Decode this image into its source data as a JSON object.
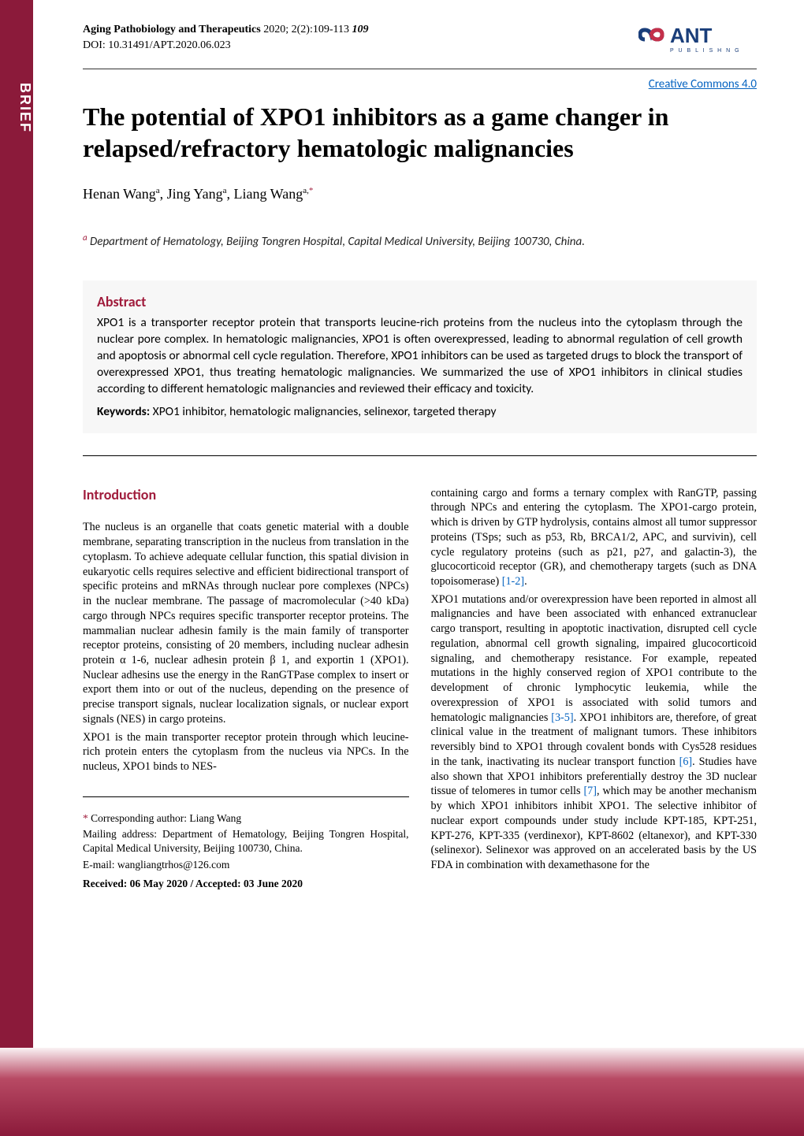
{
  "sidebar": {
    "label": "BRIEF"
  },
  "header": {
    "journal_name": "Aging Pathobiology and Therapeutics",
    "citation_rest": " 2020; 2(2):109-113 ",
    "page_em": "109",
    "doi": "DOI: 10.31491/APT.2020.06.023",
    "logo_text_main": "ANT",
    "logo_text_sub": "P U B L I S H N G"
  },
  "cc_link": "Creative Commons 4.0",
  "title": "The potential of XPO1 inhibitors as a game changer in relapsed/refractory hematologic malignancies",
  "authors_html": "Henan Wang<sup>a</sup>, Jing Yang<sup>a</sup>, Liang Wang<sup>a,</sup><sup class=\"corr-star\">*</sup>",
  "affiliation": {
    "sup": "a",
    "text": " Department of Hematology, Beijing Tongren Hospital, Capital Medical University, Beijing 100730, China."
  },
  "abstract": {
    "heading": "Abstract",
    "text": "XPO1 is a transporter receptor protein that transports leucine-rich proteins from the nucleus into the cytoplasm through the nuclear pore complex. In hematologic malignancies, XPO1 is often overexpressed, leading to abnormal regulation of cell growth and apoptosis or abnormal cell cycle regulation. Therefore, XPO1 inhibitors can be used as targeted drugs to block the transport of overexpressed XPO1, thus treating hematologic malignancies. We summarized the use of XPO1 inhibitors in clinical studies according to different hematologic malignancies and reviewed their efficacy and toxicity.",
    "keywords_label": "Keywords:",
    "keywords_text": " XPO1 inhibitor, hematologic malignancies, selinexor, targeted therapy"
  },
  "intro_heading": "Introduction",
  "col_left": {
    "p1": "The nucleus is an organelle that coats genetic material with a double membrane, separating transcription in the nucleus from translation in the cytoplasm. To achieve adequate cellular function, this spatial division in eukaryotic cells requires selective and efficient bidirectional transport of specific proteins and mRNAs through nuclear pore complexes (NPCs) in the nuclear membrane. The passage of macromolecular (>40 kDa) cargo through NPCs requires specific transporter receptor proteins. The mammalian nuclear adhesin family is the main family of transporter receptor proteins, consisting of 20 members, including nuclear adhesin protein α 1-6, nuclear adhesin protein β 1, and exportin 1 (XPO1). Nuclear adhesins use the energy in the RanGTPase complex to insert or export them into or out of the nucleus, depending on the presence of precise transport signals, nuclear localization signals, or nuclear export signals (NES) in cargo proteins.",
    "p2": "XPO1 is the main transporter receptor protein through which leucine-rich protein enters the cytoplasm from the nucleus via NPCs. In the nucleus, XPO1 binds to NES-"
  },
  "col_right": {
    "p1_a": "containing cargo and forms a ternary complex with RanGTP, passing through NPCs and entering the cytoplasm. The XPO1-cargo protein, which is driven by GTP hydrolysis, contains almost all tumor suppressor proteins (TSps; such as p53, Rb, BRCA1/2, APC, and survivin), cell cycle regulatory proteins (such as p21, p27, and galactin-3), the glucocorticoid receptor (GR), and chemotherapy targets (such as DNA topoisomerase) ",
    "ref1": "[1-2]",
    "p1_b": ".",
    "p2_a": "XPO1 mutations and/or overexpression have been reported in almost all malignancies and have been associated with enhanced extranuclear cargo transport, resulting in apoptotic inactivation, disrupted cell cycle regulation, abnormal cell growth signaling, impaired glucocorticoid signaling, and chemotherapy resistance. For example, repeated mutations in the highly conserved region of XPO1 contribute to the development of chronic lymphocytic leukemia, while the overexpression of XPO1 is associated with solid tumors and hematologic malignancies ",
    "ref2": "[3-5]",
    "p2_b": ". XPO1 inhibitors are, therefore, of great clinical value in the treatment of malignant tumors. These inhibitors reversibly bind to XPO1 through covalent bonds with Cys528 residues in the tank, inactivating its nuclear transport function ",
    "ref3": "[6]",
    "p2_c": ". Studies have also shown that XPO1 inhibitors preferentially destroy the 3D nuclear tissue of telomeres in tumor cells ",
    "ref4": "[7]",
    "p2_d": ", which may be another mechanism by which XPO1 inhibitors inhibit XPO1. The selective inhibitor of nuclear export compounds under study include KPT-185, KPT-251, KPT-276, KPT-335 (verdinexor), KPT-8602 (eltanexor), and KPT-330 (selinexor). Selinexor was approved on an accelerated basis by the US FDA in combination with dexamethasone for the"
  },
  "footnotes": {
    "corr_label": "* ",
    "corr_text": "Corresponding author: Liang Wang",
    "mailing": "Mailing address: Department of Hematology, Beijing Tongren Hospital, Capital Medical University, Beijing 100730, China.",
    "email": "E-mail: wangliangtrhos@126.com",
    "received": "Received: 06 May 2020 / Accepted: 03 June 2020"
  },
  "colors": {
    "brand": "#8b1a3a",
    "accent": "#a01c3c",
    "link": "#0563c1",
    "abstract_bg": "#f7f7f7",
    "logo_blue": "#1a3e7a",
    "logo_red": "#c4304a"
  }
}
